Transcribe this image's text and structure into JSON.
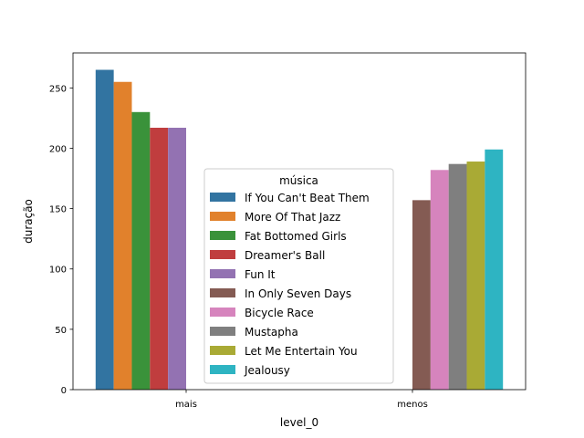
{
  "chart_data": {
    "type": "bar",
    "title": "",
    "xlabel": "level_0",
    "ylabel": "duração",
    "categories": [
      "mais",
      "menos"
    ],
    "ylim": [
      0,
      279
    ],
    "yticks": [
      0,
      50,
      100,
      150,
      200,
      250
    ],
    "grid": false,
    "legend": {
      "title": "música",
      "placement": "center"
    },
    "series": [
      {
        "name": "If You Can't Beat Them",
        "color": "#3274a1",
        "values": [
          265,
          null
        ]
      },
      {
        "name": "More Of That Jazz",
        "color": "#e1812c",
        "values": [
          255,
          null
        ]
      },
      {
        "name": "Fat Bottomed Girls",
        "color": "#3a923a",
        "values": [
          230,
          null
        ]
      },
      {
        "name": "Dreamer's Ball",
        "color": "#c03d3e",
        "values": [
          217,
          null
        ]
      },
      {
        "name": "Fun It",
        "color": "#9372b2",
        "values": [
          217,
          null
        ]
      },
      {
        "name": "In Only Seven Days",
        "color": "#845b53",
        "values": [
          null,
          157
        ]
      },
      {
        "name": "Bicycle Race",
        "color": "#d684bd",
        "values": [
          null,
          182
        ]
      },
      {
        "name": "Mustapha",
        "color": "#7f7f7f",
        "values": [
          null,
          187
        ]
      },
      {
        "name": "Let Me Entertain You",
        "color": "#a9aa35",
        "values": [
          null,
          189
        ]
      },
      {
        "name": "Jealousy",
        "color": "#2eb4c2",
        "values": [
          null,
          199
        ]
      }
    ]
  }
}
